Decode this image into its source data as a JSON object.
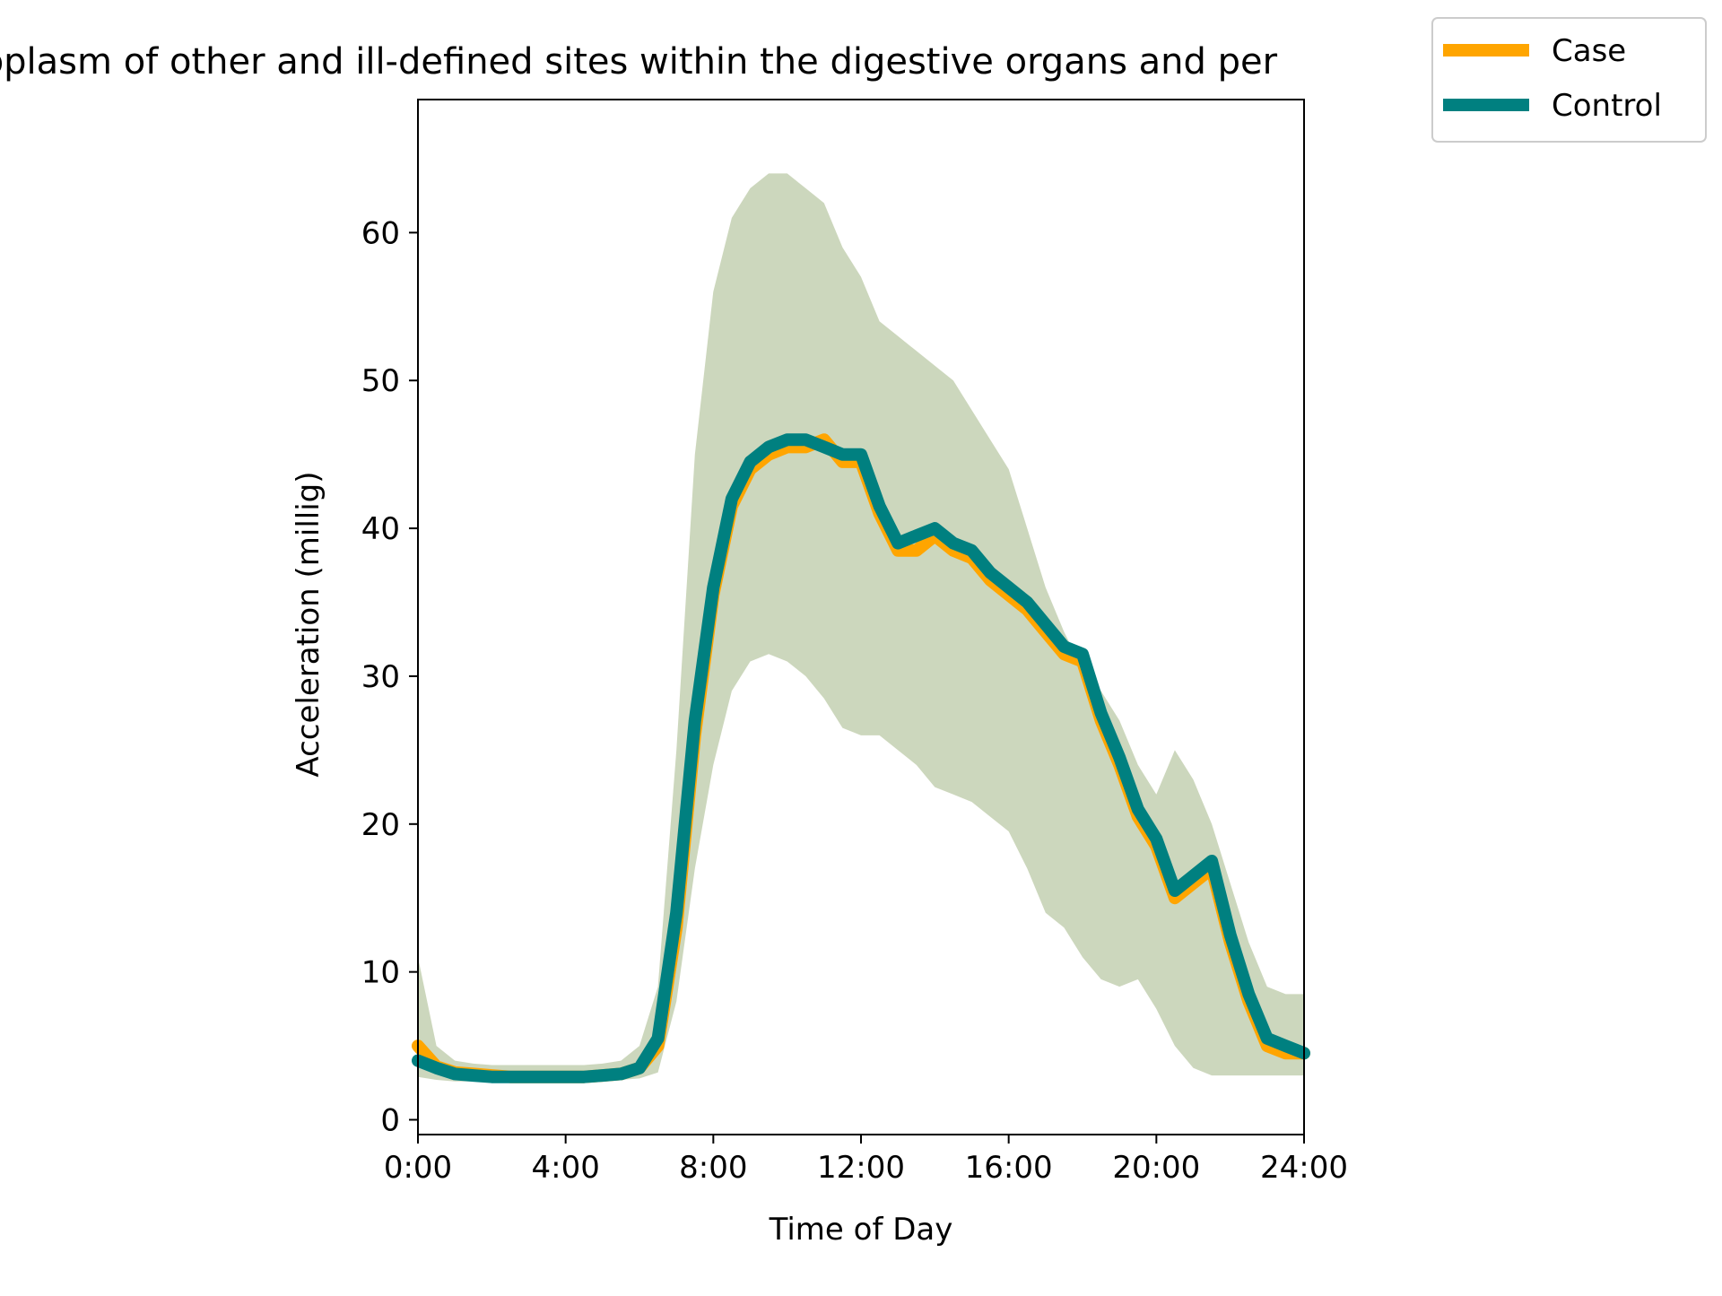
{
  "chart_data": {
    "type": "line",
    "title": "nt neoplasm of other and ill-defined sites within the digestive organs and per",
    "xlabel": "Time of Day",
    "ylabel": "Acceleration (millig)",
    "xlim": [
      0,
      24
    ],
    "ylim": [
      -1,
      69
    ],
    "x_ticks": [
      0,
      4,
      8,
      12,
      16,
      20,
      24
    ],
    "x_tick_labels": [
      "0:00",
      "4:00",
      "8:00",
      "12:00",
      "16:00",
      "20:00",
      "24:00"
    ],
    "y_ticks": [
      0,
      10,
      20,
      30,
      40,
      50,
      60
    ],
    "y_tick_labels": [
      "0",
      "10",
      "20",
      "30",
      "40",
      "50",
      "60"
    ],
    "grid": false,
    "legend_position": "top-right",
    "x": [
      0,
      0.5,
      1,
      1.5,
      2,
      2.5,
      3,
      3.5,
      4,
      4.5,
      5,
      5.5,
      6,
      6.5,
      7,
      7.5,
      8,
      8.5,
      9,
      9.5,
      10,
      10.5,
      11,
      11.5,
      12,
      12.5,
      13,
      13.5,
      14,
      14.5,
      15,
      15.5,
      16,
      16.5,
      17,
      17.5,
      18,
      18.5,
      19,
      19.5,
      20,
      20.5,
      21,
      21.5,
      22,
      22.5,
      23,
      23.5,
      24
    ],
    "series": [
      {
        "name": "Case",
        "color": "#FFA500",
        "values": [
          5.0,
          3.6,
          3.2,
          3.1,
          3.0,
          2.9,
          2.9,
          2.9,
          2.9,
          2.9,
          3.0,
          3.1,
          3.5,
          5.0,
          13.0,
          26.0,
          35.5,
          41.5,
          44.0,
          45.0,
          45.5,
          45.5,
          46.0,
          44.5,
          44.5,
          41.0,
          38.5,
          38.5,
          39.5,
          38.5,
          38.0,
          36.5,
          35.5,
          34.5,
          33.0,
          31.5,
          31.0,
          27.0,
          24.0,
          20.5,
          18.5,
          15.0,
          16.0,
          17.0,
          12.0,
          8.0,
          5.0,
          4.5,
          4.5
        ],
        "lower": [
          2.9,
          2.7,
          2.6,
          2.6,
          2.6,
          2.5,
          2.5,
          2.5,
          2.5,
          2.5,
          2.6,
          2.7,
          2.8,
          3.2,
          8.0,
          17.0,
          24.0,
          29.0,
          31.0,
          31.5,
          31.0,
          30.0,
          28.5,
          26.5,
          26.0,
          26.0,
          25.0,
          24.0,
          22.5,
          22.0,
          21.5,
          20.5,
          19.5,
          17.0,
          14.0,
          13.0,
          11.0,
          9.5,
          9.0,
          9.5,
          7.5,
          5.0,
          3.5,
          3.0,
          3.0,
          3.0,
          3.0,
          3.0,
          3.0
        ],
        "upper": [
          11.0,
          5.0,
          4.0,
          3.8,
          3.7,
          3.7,
          3.7,
          3.7,
          3.7,
          3.7,
          3.8,
          4.0,
          5.0,
          9.0,
          25.0,
          45.0,
          56.0,
          61.0,
          63.0,
          64.0,
          64.0,
          63.0,
          62.0,
          59.0,
          57.0,
          54.0,
          53.0,
          52.0,
          51.0,
          50.0,
          48.0,
          46.0,
          44.0,
          40.0,
          36.0,
          33.0,
          30.5,
          29.0,
          27.0,
          24.0,
          22.0,
          25.0,
          23.0,
          20.0,
          16.0,
          12.0,
          9.0,
          8.5,
          8.5
        ]
      },
      {
        "name": "Control",
        "color": "#008080",
        "values": [
          4.0,
          3.5,
          3.1,
          3.0,
          2.9,
          2.9,
          2.9,
          2.9,
          2.9,
          2.9,
          3.0,
          3.1,
          3.5,
          5.5,
          14.0,
          27.0,
          36.0,
          42.0,
          44.5,
          45.5,
          46.0,
          46.0,
          45.5,
          45.0,
          45.0,
          41.5,
          39.0,
          39.5,
          40.0,
          39.0,
          38.5,
          37.0,
          36.0,
          35.0,
          33.5,
          32.0,
          31.5,
          27.5,
          24.5,
          21.0,
          19.0,
          15.5,
          16.5,
          17.5,
          12.5,
          8.5,
          5.5,
          5.0,
          4.5
        ],
        "lower": [
          2.9,
          2.7,
          2.6,
          2.6,
          2.6,
          2.5,
          2.5,
          2.5,
          2.5,
          2.5,
          2.6,
          2.7,
          2.8,
          3.2,
          8.0,
          17.0,
          24.0,
          29.0,
          31.0,
          31.5,
          31.0,
          30.0,
          28.5,
          26.5,
          26.0,
          26.0,
          25.0,
          24.0,
          22.5,
          22.0,
          21.5,
          20.5,
          19.5,
          17.0,
          14.0,
          13.0,
          11.0,
          9.5,
          9.0,
          9.5,
          7.5,
          5.0,
          3.5,
          3.0,
          3.0,
          3.0,
          3.0,
          3.0,
          3.0
        ],
        "upper": [
          11.0,
          5.0,
          4.0,
          3.8,
          3.7,
          3.7,
          3.7,
          3.7,
          3.7,
          3.7,
          3.8,
          4.0,
          5.0,
          9.0,
          25.0,
          45.0,
          56.0,
          61.0,
          63.0,
          64.0,
          64.0,
          63.0,
          62.0,
          59.0,
          57.0,
          54.0,
          53.0,
          52.0,
          51.0,
          50.0,
          48.0,
          46.0,
          44.0,
          40.0,
          36.0,
          33.0,
          30.5,
          29.0,
          27.0,
          24.0,
          22.0,
          25.0,
          23.0,
          20.0,
          16.0,
          12.0,
          9.0,
          8.5,
          8.5
        ]
      }
    ]
  }
}
